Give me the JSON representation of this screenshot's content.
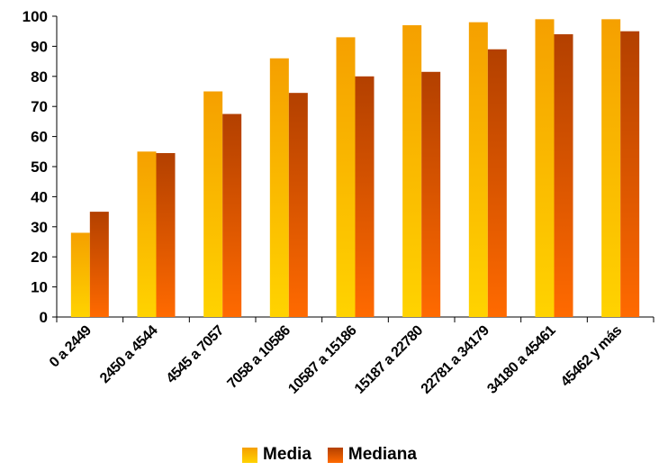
{
  "chart_data": {
    "type": "bar",
    "categories": [
      "0 a 2449",
      "2450 a 4544",
      "4545 a 7057",
      "7058 a 10586",
      "10587 a 15186",
      "15187 a 22780",
      "22781 a 34179",
      "34180 a 45461",
      "45462 y más"
    ],
    "series": [
      {
        "name": "Media",
        "values": [
          28,
          55,
          75,
          86,
          93,
          97,
          98,
          99,
          99
        ],
        "color_top": "#F5A000",
        "color_bottom": "#FFD300"
      },
      {
        "name": "Mediana",
        "values": [
          35,
          54.5,
          67.5,
          74.5,
          80,
          81.5,
          89,
          94,
          95
        ],
        "color_top": "#B34000",
        "color_bottom": "#FF6A00"
      }
    ],
    "ylim": [
      0,
      100
    ],
    "yticks": [
      "0",
      "10",
      "20",
      "30",
      "40",
      "50",
      "60",
      "70",
      "80",
      "90",
      "100"
    ],
    "grid": false,
    "legend_position": "bottom"
  }
}
